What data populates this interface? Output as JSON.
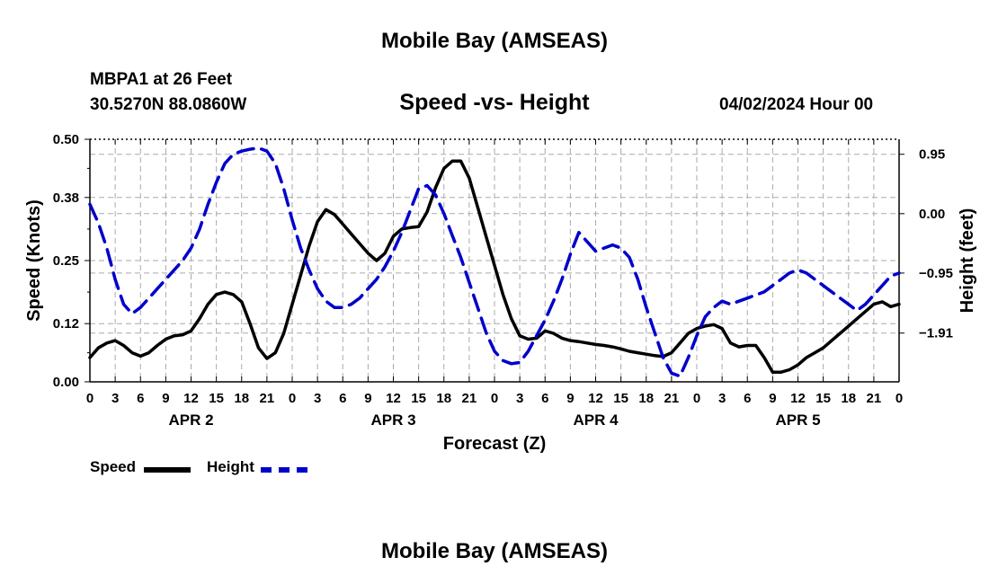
{
  "page": {
    "title": "Mobile Bay (AMSEAS)",
    "repeat_title": "Mobile Bay (AMSEAS)",
    "station": "MBPA1 at 26 Feet",
    "coords": "30.5270N  88.0860W",
    "subtitle": "Speed -vs- Height",
    "datetime": "04/02/2024 Hour 00"
  },
  "legend": {
    "speed_label": "Speed",
    "height_label": "Height"
  },
  "colors": {
    "speed": "#000000",
    "height": "#0000cc",
    "grid": "#aaaaaa"
  },
  "chart_data": {
    "type": "line",
    "xlabel": "Forecast (Z)",
    "ylabel_left": "Speed (Knots)",
    "ylabel_right": "Height (feet)",
    "x_range_hours": [
      0,
      96
    ],
    "x_tick_labels": [
      "0",
      "3",
      "6",
      "9",
      "12",
      "15",
      "18",
      "21",
      "0",
      "3",
      "6",
      "9",
      "12",
      "15",
      "18",
      "21",
      "0",
      "3",
      "6",
      "9",
      "12",
      "15",
      "18",
      "21",
      "0",
      "3",
      "6",
      "9",
      "12",
      "15",
      "18",
      "21",
      "0"
    ],
    "day_labels": [
      {
        "label": "APR 2",
        "hour": 12
      },
      {
        "label": "APR 3",
        "hour": 36
      },
      {
        "label": "APR 4",
        "hour": 60
      },
      {
        "label": "APR 5",
        "hour": 84
      }
    ],
    "y_left": {
      "range": [
        0,
        0.5
      ],
      "ticks": [
        0.0,
        0.12,
        0.25,
        0.38,
        0.5
      ],
      "tick_labels": [
        "0.00",
        "0.12",
        "0.25",
        "0.38",
        "0.50"
      ]
    },
    "y_right": {
      "range": [
        -2.69,
        1.19
      ],
      "ticks": [
        0.95,
        0.0,
        -0.95,
        -1.91
      ],
      "tick_labels": [
        "0.95",
        "0.00",
        "−0.95",
        "−1.91"
      ]
    },
    "series": [
      {
        "name": "Speed",
        "axis": "left",
        "style": "solid",
        "x": [
          0,
          1,
          2,
          3,
          4,
          5,
          6,
          7,
          8,
          9,
          10,
          11,
          12,
          13,
          14,
          15,
          16,
          17,
          18,
          19,
          20,
          21,
          22,
          23,
          24,
          25,
          26,
          27,
          28,
          29,
          30,
          31,
          32,
          33,
          34,
          35,
          36,
          37,
          38,
          39,
          40,
          41,
          42,
          43,
          44,
          45,
          46,
          47,
          48,
          49,
          50,
          51,
          52,
          53,
          54,
          55,
          56,
          57,
          58,
          59,
          60,
          61,
          62,
          63,
          64,
          65,
          66,
          67,
          68,
          69,
          70,
          71,
          72,
          73,
          74,
          75,
          76,
          77,
          78,
          79,
          80,
          81,
          82,
          83,
          84,
          85,
          86,
          87,
          88,
          89,
          90,
          91,
          92,
          93,
          94,
          95,
          96
        ],
        "values": [
          0.05,
          0.07,
          0.08,
          0.085,
          0.075,
          0.06,
          0.053,
          0.06,
          0.075,
          0.088,
          0.095,
          0.097,
          0.105,
          0.13,
          0.16,
          0.18,
          0.185,
          0.18,
          0.165,
          0.12,
          0.07,
          0.048,
          0.06,
          0.1,
          0.16,
          0.22,
          0.28,
          0.33,
          0.355,
          0.345,
          0.325,
          0.305,
          0.285,
          0.265,
          0.25,
          0.265,
          0.3,
          0.315,
          0.318,
          0.32,
          0.35,
          0.4,
          0.44,
          0.455,
          0.455,
          0.42,
          0.36,
          0.3,
          0.24,
          0.18,
          0.13,
          0.095,
          0.088,
          0.09,
          0.105,
          0.1,
          0.09,
          0.085,
          0.083,
          0.08,
          0.077,
          0.075,
          0.072,
          0.068,
          0.063,
          0.06,
          0.057,
          0.054,
          0.052,
          0.06,
          0.08,
          0.1,
          0.11,
          0.115,
          0.118,
          0.11,
          0.08,
          0.072,
          0.075,
          0.075,
          0.05,
          0.02,
          0.02,
          0.025,
          0.035,
          0.05,
          0.06,
          0.07,
          0.085,
          0.1,
          0.115,
          0.13,
          0.145,
          0.16,
          0.165,
          0.155,
          0.16
        ]
      },
      {
        "name": "Height",
        "axis": "right",
        "style": "dashed",
        "x": [
          0,
          1,
          2,
          3,
          4,
          5,
          6,
          7,
          8,
          9,
          10,
          11,
          12,
          13,
          14,
          15,
          16,
          17,
          18,
          19,
          20,
          21,
          22,
          23,
          24,
          25,
          26,
          27,
          28,
          29,
          30,
          31,
          32,
          33,
          34,
          35,
          36,
          37,
          38,
          39,
          40,
          41,
          42,
          43,
          44,
          45,
          46,
          47,
          48,
          49,
          50,
          51,
          52,
          53,
          54,
          55,
          56,
          57,
          58,
          59,
          60,
          61,
          62,
          63,
          64,
          65,
          66,
          67,
          68,
          69,
          70,
          71,
          72,
          73,
          74,
          75,
          76,
          77,
          78,
          79,
          80,
          81,
          82,
          83,
          84,
          85,
          86,
          87,
          88,
          89,
          90,
          91,
          92,
          93,
          94,
          95,
          96
        ],
        "values": [
          0.15,
          -0.15,
          -0.55,
          -1.05,
          -1.45,
          -1.6,
          -1.5,
          -1.35,
          -1.2,
          -1.05,
          -0.9,
          -0.75,
          -0.55,
          -0.25,
          0.15,
          0.5,
          0.8,
          0.95,
          1.0,
          1.03,
          1.05,
          1.0,
          0.8,
          0.4,
          -0.1,
          -0.55,
          -0.9,
          -1.2,
          -1.4,
          -1.5,
          -1.5,
          -1.45,
          -1.35,
          -1.2,
          -1.05,
          -0.85,
          -0.6,
          -0.3,
          0.05,
          0.4,
          0.45,
          0.3,
          0.0,
          -0.35,
          -0.7,
          -1.1,
          -1.5,
          -1.9,
          -2.2,
          -2.35,
          -2.4,
          -2.38,
          -2.2,
          -1.95,
          -1.7,
          -1.4,
          -1.05,
          -0.65,
          -0.3,
          -0.45,
          -0.6,
          -0.55,
          -0.5,
          -0.55,
          -0.7,
          -1.05,
          -1.5,
          -1.9,
          -2.3,
          -2.55,
          -2.6,
          -2.3,
          -1.95,
          -1.65,
          -1.5,
          -1.4,
          -1.45,
          -1.4,
          -1.35,
          -1.3,
          -1.25,
          -1.15,
          -1.05,
          -0.95,
          -0.9,
          -0.95,
          -1.05,
          -1.15,
          -1.25,
          -1.35,
          -1.45,
          -1.55,
          -1.45,
          -1.3,
          -1.15,
          -1.0,
          -0.95
        ]
      }
    ]
  }
}
